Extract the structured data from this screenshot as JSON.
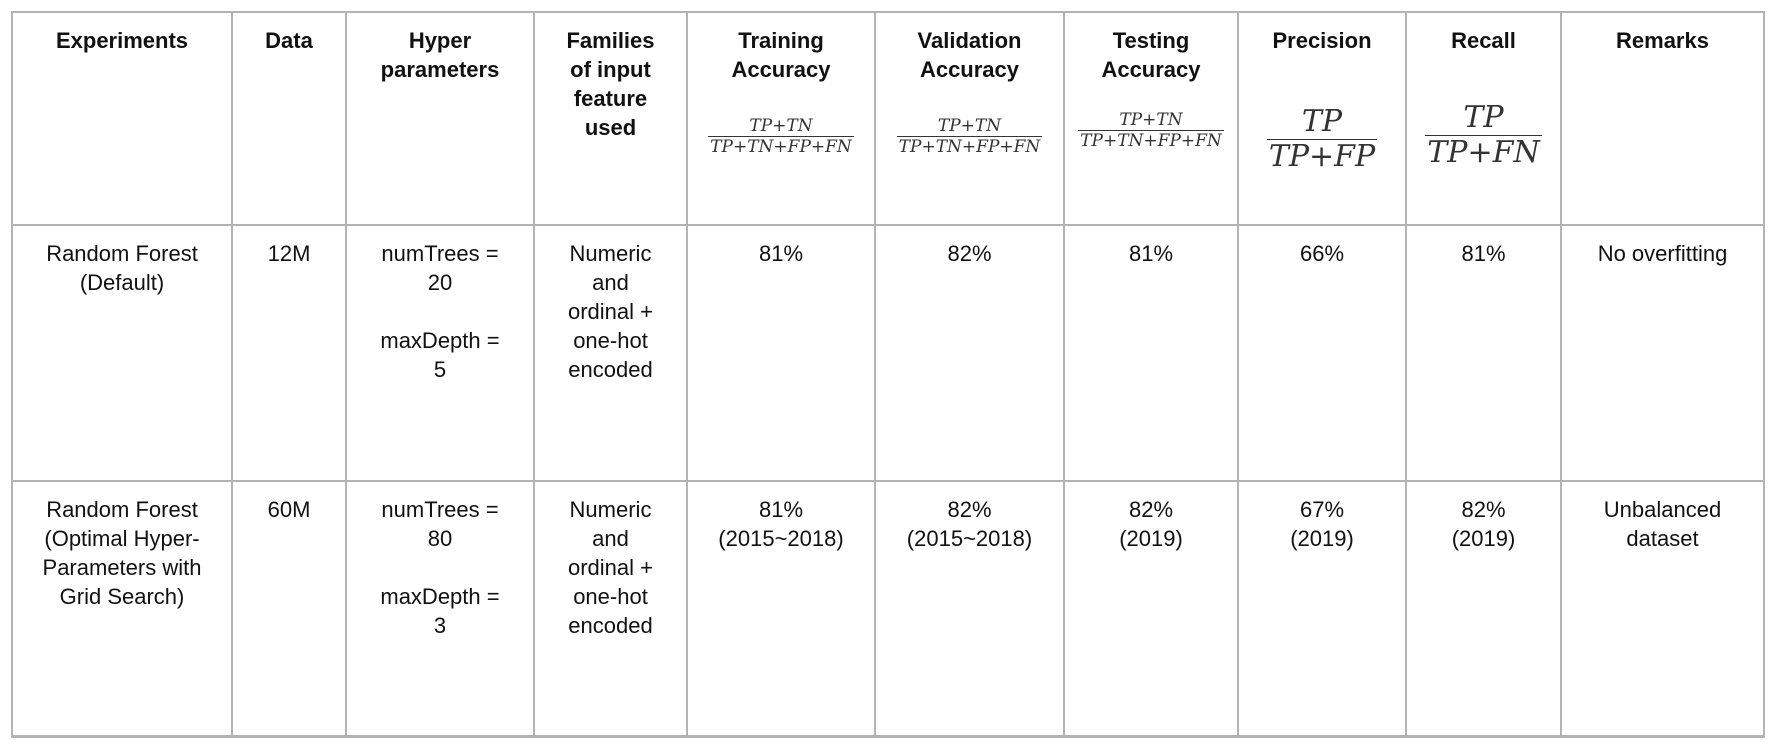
{
  "table": {
    "headers": {
      "experiments": "Experiments",
      "data": "Data",
      "hyper": [
        "Hyper",
        "parameters"
      ],
      "families": [
        "Families",
        "of input",
        "feature",
        "used"
      ],
      "training": [
        "Training",
        "Accuracy"
      ],
      "validation": [
        "Validation",
        "Accuracy"
      ],
      "testing": [
        "Testing",
        "Accuracy"
      ],
      "precision": "Precision",
      "recall": "Recall",
      "remarks": "Remarks"
    },
    "formulas": {
      "training": {
        "num": "TP+TN",
        "den": "TP+TN+FP+FN"
      },
      "validation": {
        "num": "TP+TN",
        "den": "TP+TN+FP+FN"
      },
      "testing": {
        "num": "TP+TN",
        "den": "TP+TN+FP+FN"
      },
      "precision": {
        "num": "TP",
        "den": "TP+FP"
      },
      "recall": {
        "num": "TP",
        "den": "TP+FN"
      }
    },
    "rows": [
      {
        "experiment": [
          "Random Forest",
          "(Default)"
        ],
        "data": "12M",
        "hyper": {
          "trees": [
            "numTrees =",
            "20"
          ],
          "depth": [
            "maxDepth =",
            "5"
          ]
        },
        "families": [
          "Numeric",
          "and",
          "ordinal +",
          "one-hot",
          "encoded"
        ],
        "training": [
          "81%"
        ],
        "validation": [
          "82%"
        ],
        "testing": [
          "81%"
        ],
        "precision": [
          "66%"
        ],
        "recall": [
          "81%"
        ],
        "remarks": [
          "No overfitting"
        ]
      },
      {
        "experiment": [
          "Random Forest",
          "(Optimal Hyper-",
          "Parameters with",
          "Grid Search)"
        ],
        "data": "60M",
        "hyper": {
          "trees": [
            "numTrees =",
            "80"
          ],
          "depth": [
            "maxDepth =",
            "3"
          ]
        },
        "families": [
          "Numeric",
          "and",
          "ordinal +",
          "one-hot",
          "encoded"
        ],
        "training": [
          "81%",
          "(2015~2018)"
        ],
        "validation": [
          "82%",
          "(2015~2018)"
        ],
        "testing": [
          "82%",
          "(2019)"
        ],
        "precision": [
          "67%",
          "(2019)"
        ],
        "recall": [
          "82%",
          "(2019)"
        ],
        "remarks": [
          "Unbalanced",
          "dataset"
        ]
      }
    ]
  }
}
